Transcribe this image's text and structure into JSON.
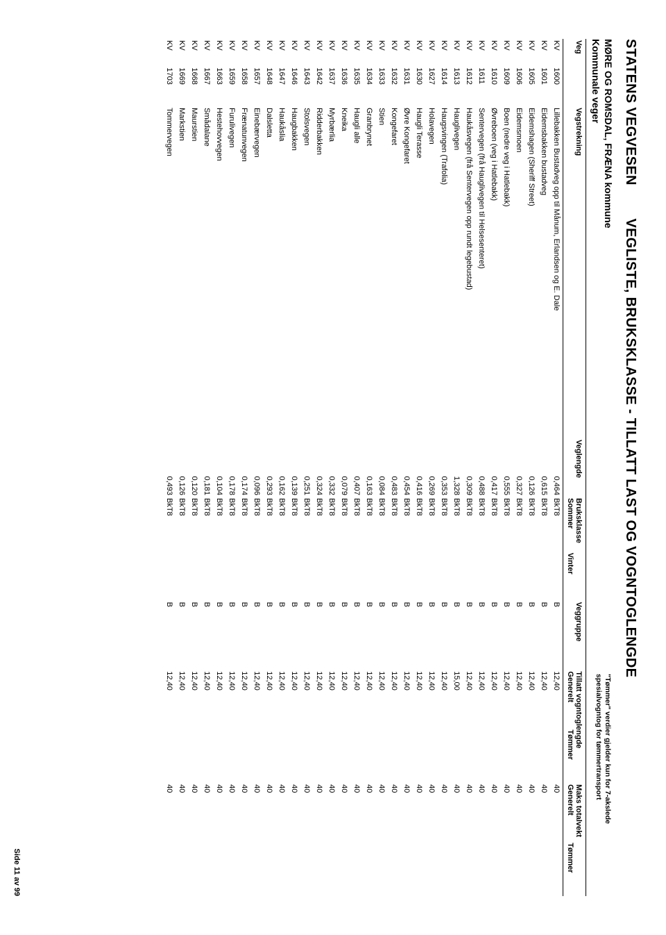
{
  "title_left": "STATENS VEGVESEN",
  "title_right": "VEGLISTE,  BRUKSKLASSE - TILLATT LAST OG VOGNTOGLENGDE",
  "subtitle": "MØRE OG ROMSDAL, FRÆNA kommune",
  "subtitle2": "Kommunale veger",
  "note_line1": "\"Tømmer\" verdier gjelder kun for 7-akslede",
  "note_line2": "spesialvogntog for tømmertransport",
  "columns": {
    "veg": "Veg",
    "vegstrekning": "Vegstrekning",
    "veglengde": "Veglengde",
    "bruksklasse": "Bruksklasse",
    "sommer": "Sommer",
    "vinter": "Vinter",
    "veggruppe": "Veggruppe",
    "tillatt": "Tillatt vogntoglengde",
    "maks": "Maks totalvekt",
    "generelt": "Generelt",
    "tommer": "Tømmer"
  },
  "rows": [
    {
      "pfx": "KV",
      "num": "1600",
      "strek": "Lillebakken Bustadveg opp til Månum, Erlandsen og E. Dale",
      "len": "0,464",
      "sommer": "BkT8",
      "vinter": "",
      "grp": "B",
      "vgen": "12,40",
      "vtom": "",
      "mtgen": "40",
      "mttom": ""
    },
    {
      "pfx": "KV",
      "num": "1601",
      "strek": "Eidemsbakken bustadveg",
      "len": "0,615",
      "sommer": "BkT8",
      "vinter": "",
      "grp": "B",
      "vgen": "12,40",
      "vtom": "",
      "mtgen": "40",
      "mttom": ""
    },
    {
      "pfx": "KV",
      "num": "1605",
      "strek": "Eidemshagen (Sheriff Street)",
      "len": "0,126",
      "sommer": "BkT8",
      "vinter": "",
      "grp": "B",
      "vgen": "12,40",
      "vtom": "",
      "mtgen": "40",
      "mttom": ""
    },
    {
      "pfx": "KV",
      "num": "1606",
      "strek": "Eidemsmoen",
      "len": "0,327",
      "sommer": "BkT8",
      "vinter": "",
      "grp": "B",
      "vgen": "12,40",
      "vtom": "",
      "mtgen": "40",
      "mttom": ""
    },
    {
      "pfx": "KV",
      "num": "1609",
      "strek": "Boen (nedre veg i Hatlebakk)",
      "len": "0,555",
      "sommer": "BkT8",
      "vinter": "",
      "grp": "B",
      "vgen": "12,40",
      "vtom": "",
      "mtgen": "40",
      "mttom": ""
    },
    {
      "pfx": "KV",
      "num": "1610",
      "strek": "Øvreboen (veg i Hatlebakk)",
      "len": "0,417",
      "sommer": "BkT8",
      "vinter": "",
      "grp": "B",
      "vgen": "12,40",
      "vtom": "",
      "mtgen": "40",
      "mttom": ""
    },
    {
      "pfx": "KV",
      "num": "1611",
      "strek": "Sentervegen (frå Hauglivegen til Helsesenteret)",
      "len": "0,488",
      "sommer": "BkT8",
      "vinter": "",
      "grp": "B",
      "vgen": "12,40",
      "vtom": "",
      "mtgen": "40",
      "mttom": ""
    },
    {
      "pfx": "KV",
      "num": "1612",
      "strek": "Haukåsvegen (frå Sentervegen opp rundt legebustad)",
      "len": "0,309",
      "sommer": "BkT8",
      "vinter": "",
      "grp": "B",
      "vgen": "12,40",
      "vtom": "",
      "mtgen": "40",
      "mttom": ""
    },
    {
      "pfx": "KV",
      "num": "1613",
      "strek": "Hauglivegen",
      "len": "1,328",
      "sommer": "BkT8",
      "vinter": "",
      "grp": "B",
      "vgen": "15,00",
      "vtom": "",
      "mtgen": "40",
      "mttom": ""
    },
    {
      "pfx": "KV",
      "num": "1614",
      "strek": "Haugsvingen (Trafolia)",
      "len": "0,353",
      "sommer": "BkT8",
      "vinter": "",
      "grp": "B",
      "vgen": "12,40",
      "vtom": "",
      "mtgen": "40",
      "mttom": ""
    },
    {
      "pfx": "KV",
      "num": "1627",
      "strek": "Holavegen",
      "len": "0,269",
      "sommer": "BkT8",
      "vinter": "",
      "grp": "B",
      "vgen": "12,40",
      "vtom": "",
      "mtgen": "40",
      "mttom": ""
    },
    {
      "pfx": "KV",
      "num": "1630",
      "strek": "Haugli Terasse",
      "len": "0,416",
      "sommer": "BkT8",
      "vinter": "",
      "grp": "B",
      "vgen": "12,40",
      "vtom": "",
      "mtgen": "40",
      "mttom": ""
    },
    {
      "pfx": "KV",
      "num": "1631",
      "strek": "Øvre Kongefaret",
      "len": "0,454",
      "sommer": "BkT8",
      "vinter": "",
      "grp": "B",
      "vgen": "12,40",
      "vtom": "",
      "mtgen": "40",
      "mttom": ""
    },
    {
      "pfx": "KV",
      "num": "1632",
      "strek": "Kongefaret",
      "len": "0,483",
      "sommer": "BkT8",
      "vinter": "",
      "grp": "B",
      "vgen": "12,40",
      "vtom": "",
      "mtgen": "40",
      "mttom": ""
    },
    {
      "pfx": "KV",
      "num": "1633",
      "strek": "Stien",
      "len": "0,084",
      "sommer": "BkT8",
      "vinter": "",
      "grp": "B",
      "vgen": "12,40",
      "vtom": "",
      "mtgen": "40",
      "mttom": ""
    },
    {
      "pfx": "KV",
      "num": "1634",
      "strek": "Granbrynet",
      "len": "0,163",
      "sommer": "BkT8",
      "vinter": "",
      "grp": "B",
      "vgen": "12,40",
      "vtom": "",
      "mtgen": "40",
      "mttom": ""
    },
    {
      "pfx": "KV",
      "num": "1635",
      "strek": "Haugli alle",
      "len": "0,407",
      "sommer": "BkT8",
      "vinter": "",
      "grp": "B",
      "vgen": "12,40",
      "vtom": "",
      "mtgen": "40",
      "mttom": ""
    },
    {
      "pfx": "KV",
      "num": "1636",
      "strek": "Kneika",
      "len": "0,079",
      "sommer": "BkT8",
      "vinter": "",
      "grp": "B",
      "vgen": "12,40",
      "vtom": "",
      "mtgen": "40",
      "mttom": ""
    },
    {
      "pfx": "KV",
      "num": "1637",
      "strek": "Myrbærlia",
      "len": "0,332",
      "sommer": "BkT8",
      "vinter": "",
      "grp": "B",
      "vgen": "12,40",
      "vtom": "",
      "mtgen": "40",
      "mttom": ""
    },
    {
      "pfx": "KV",
      "num": "1642",
      "strek": "Ridderbakken",
      "len": "0,324",
      "sommer": "BkT8",
      "vinter": "",
      "grp": "B",
      "vgen": "12,40",
      "vtom": "",
      "mtgen": "40",
      "mttom": ""
    },
    {
      "pfx": "KV",
      "num": "1643",
      "strek": "Stolsvegen",
      "len": "0,251",
      "sommer": "BkT8",
      "vinter": "",
      "grp": "B",
      "vgen": "12,40",
      "vtom": "",
      "mtgen": "40",
      "mttom": ""
    },
    {
      "pfx": "KV",
      "num": "1646",
      "strek": "Haugbakken",
      "len": "0,139",
      "sommer": "BkT8",
      "vinter": "",
      "grp": "B",
      "vgen": "12,40",
      "vtom": "",
      "mtgen": "40",
      "mttom": ""
    },
    {
      "pfx": "KV",
      "num": "1647",
      "strek": "Haukåslia",
      "len": "0,162",
      "sommer": "BkT8",
      "vinter": "",
      "grp": "B",
      "vgen": "12,40",
      "vtom": "",
      "mtgen": "40",
      "mttom": ""
    },
    {
      "pfx": "KV",
      "num": "1648",
      "strek": "Dalsletta",
      "len": "0,293",
      "sommer": "BkT8",
      "vinter": "",
      "grp": "B",
      "vgen": "12,40",
      "vtom": "",
      "mtgen": "40",
      "mttom": ""
    },
    {
      "pfx": "KV",
      "num": "1657",
      "strek": "Einebærvegen",
      "len": "0,096",
      "sommer": "BkT8",
      "vinter": "",
      "grp": "B",
      "vgen": "12,40",
      "vtom": "",
      "mtgen": "40",
      "mttom": ""
    },
    {
      "pfx": "KV",
      "num": "1658",
      "strek": "Frænatunvegen",
      "len": "0,174",
      "sommer": "BkT8",
      "vinter": "",
      "grp": "B",
      "vgen": "12,40",
      "vtom": "",
      "mtgen": "40",
      "mttom": ""
    },
    {
      "pfx": "KV",
      "num": "1659",
      "strek": "Furulivegen",
      "len": "0,178",
      "sommer": "BkT8",
      "vinter": "",
      "grp": "B",
      "vgen": "12,40",
      "vtom": "",
      "mtgen": "40",
      "mttom": ""
    },
    {
      "pfx": "KV",
      "num": "1663",
      "strek": "Hestehovvegen",
      "len": "0,104",
      "sommer": "BkT8",
      "vinter": "",
      "grp": "B",
      "vgen": "12,40",
      "vtom": "",
      "mtgen": "40",
      "mttom": ""
    },
    {
      "pfx": "KV",
      "num": "1667",
      "strek": "Smådalane",
      "len": "0,181",
      "sommer": "BkT8",
      "vinter": "",
      "grp": "B",
      "vgen": "12,40",
      "vtom": "",
      "mtgen": "40",
      "mttom": ""
    },
    {
      "pfx": "KV",
      "num": "1668",
      "strek": "Maurstien",
      "len": "0,120",
      "sommer": "BkT8",
      "vinter": "",
      "grp": "B",
      "vgen": "12,40",
      "vtom": "",
      "mtgen": "40",
      "mttom": ""
    },
    {
      "pfx": "KV",
      "num": "1669",
      "strek": "Markstien",
      "len": "0,126",
      "sommer": "BkT8",
      "vinter": "",
      "grp": "B",
      "vgen": "12,40",
      "vtom": "",
      "mtgen": "40",
      "mttom": ""
    },
    {
      "pfx": "KV",
      "num": "1703",
      "strek": "Tommervegen",
      "len": "0,493",
      "sommer": "BkT8",
      "vinter": "",
      "grp": "B",
      "vgen": "12,40",
      "vtom": "",
      "mtgen": "40",
      "mttom": ""
    }
  ],
  "footer": "Side 11 av 99"
}
